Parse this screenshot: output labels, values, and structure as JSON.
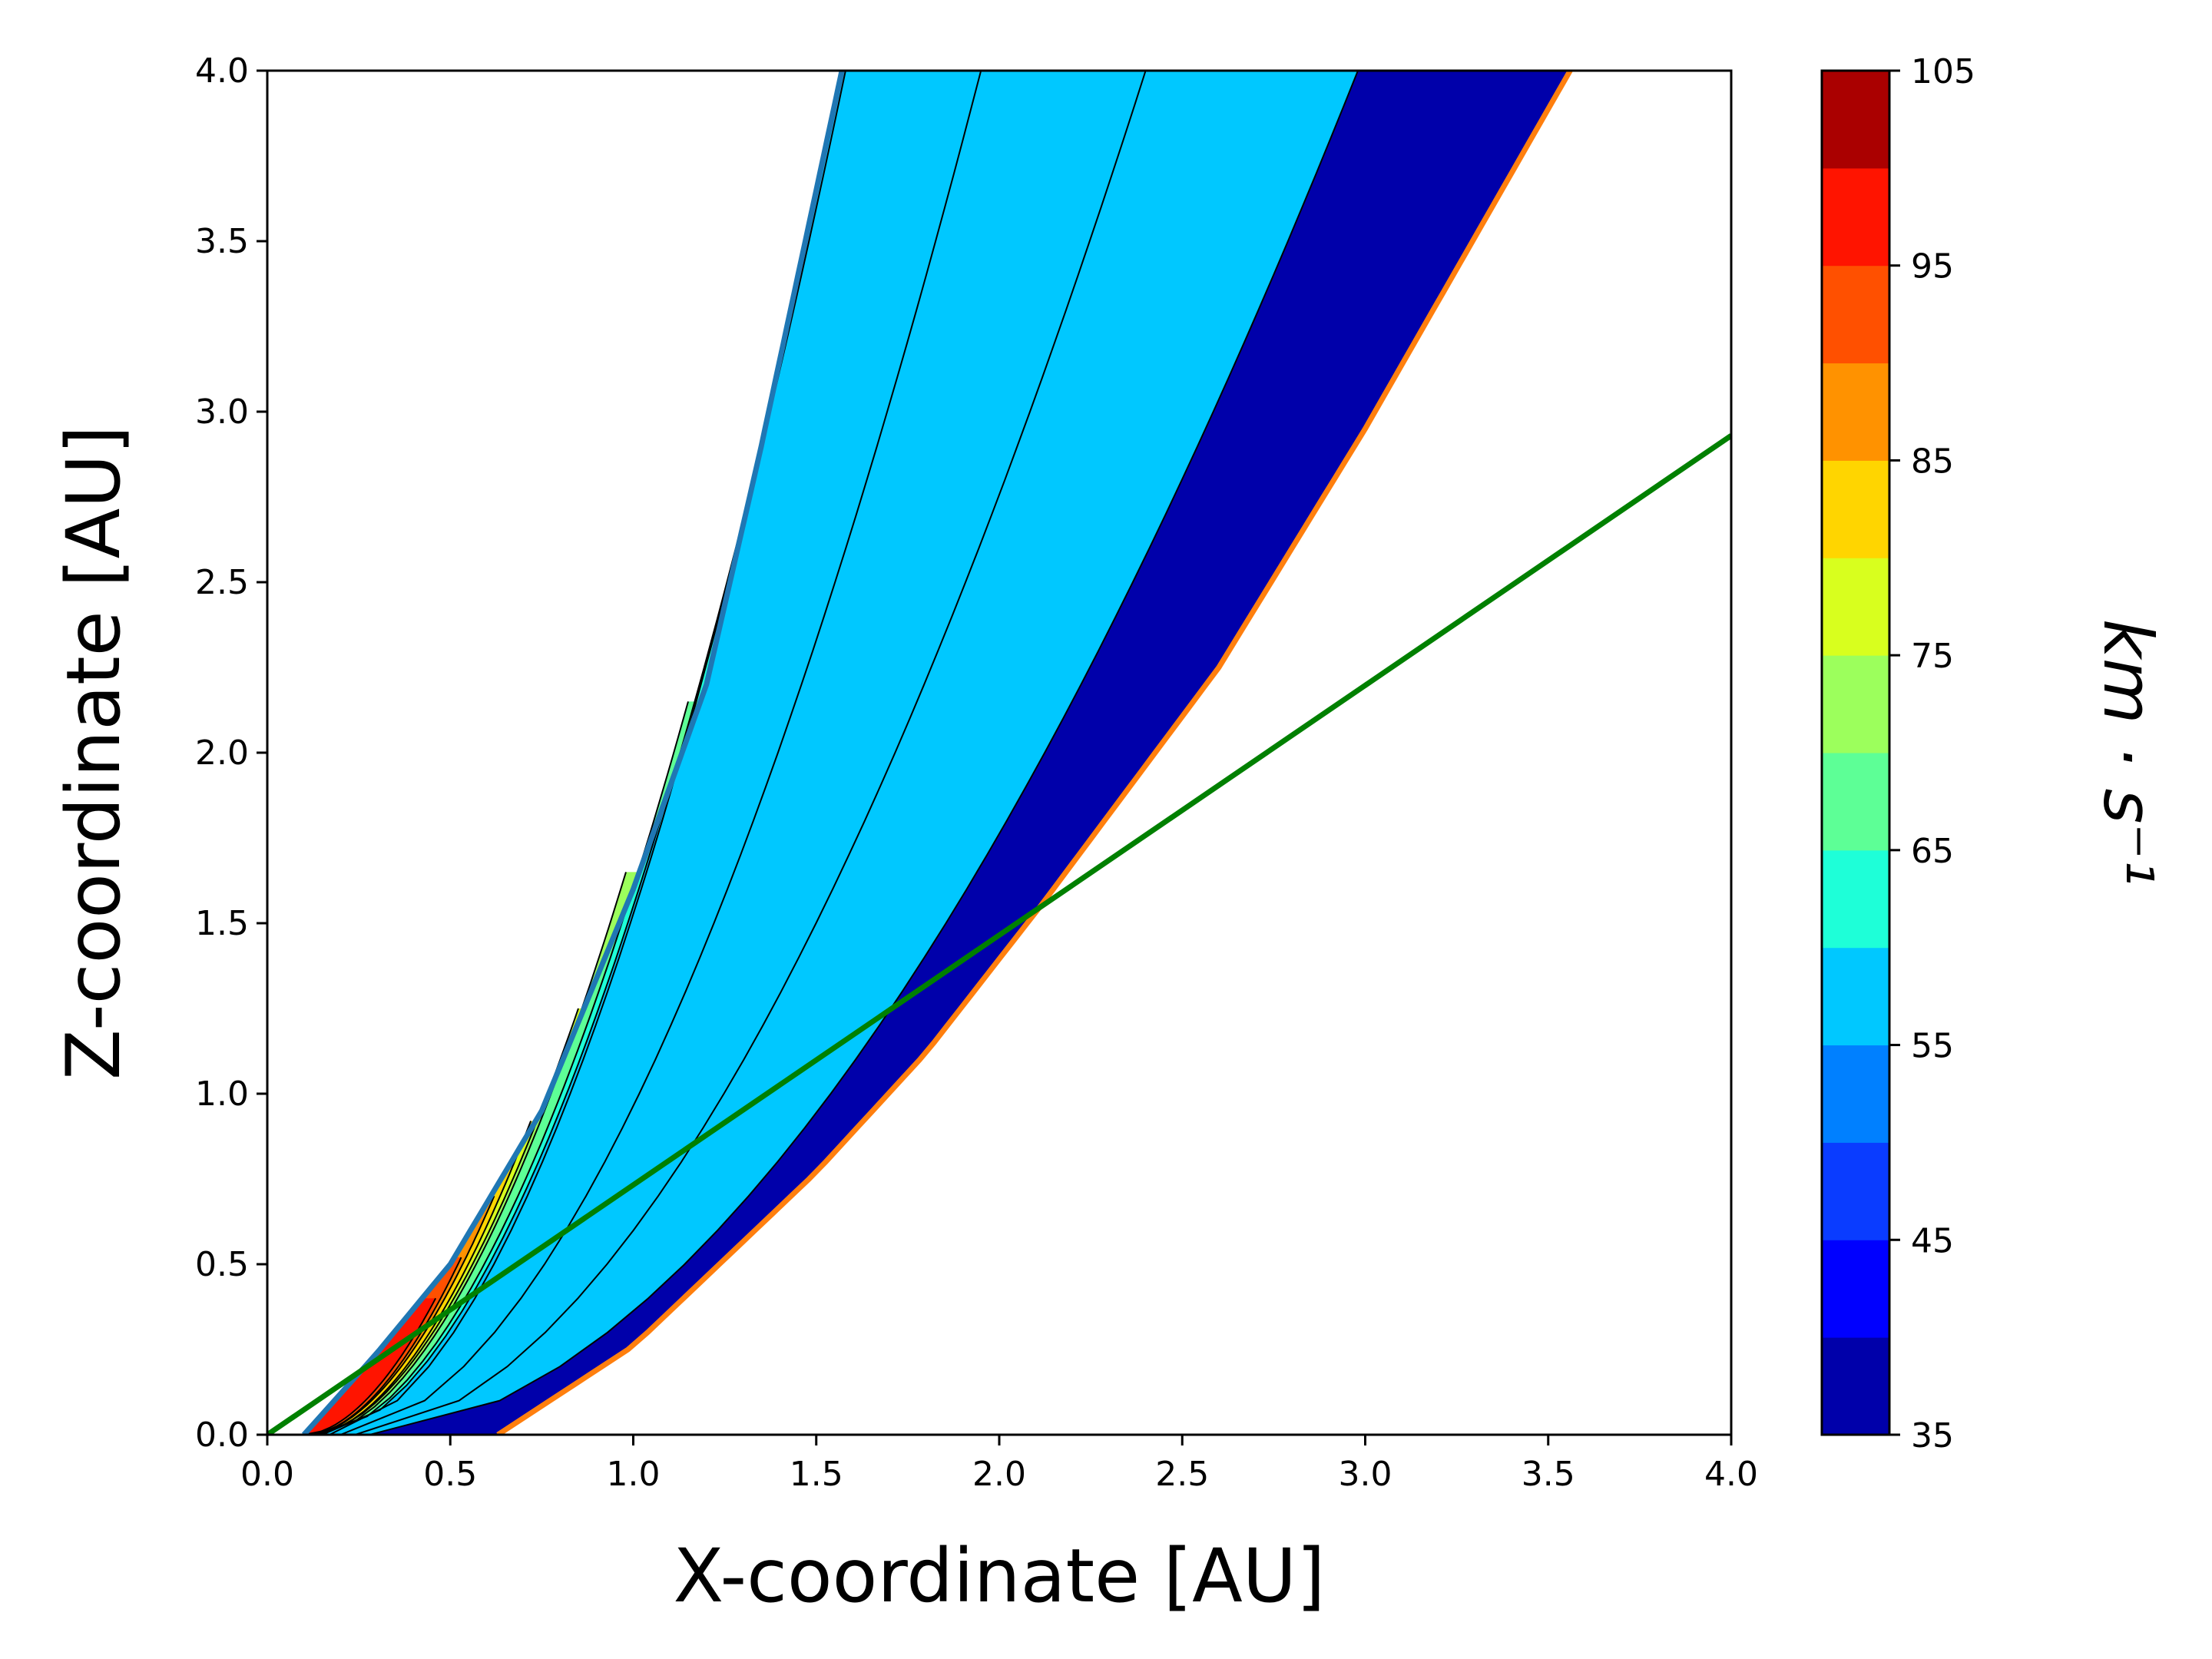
{
  "chart_data": {
    "type": "contour",
    "xlabel": "X-coordinate [AU]",
    "ylabel": "Z-coordinate [AU]",
    "xlim": [
      0.0,
      4.0
    ],
    "ylim": [
      0.0,
      4.0
    ],
    "x_ticks": [
      "0.0",
      "0.5",
      "1.0",
      "1.5",
      "2.0",
      "2.5",
      "3.0",
      "3.5",
      "4.0"
    ],
    "y_ticks": [
      "0.0",
      "0.5",
      "1.0",
      "1.5",
      "2.0",
      "2.5",
      "3.0",
      "3.5",
      "4.0"
    ],
    "grid": false,
    "colorbar": {
      "label": "km · s⁻¹",
      "tick_labels": [
        "35",
        "45",
        "55",
        "65",
        "75",
        "85",
        "95",
        "105"
      ],
      "levels": [
        35,
        40,
        45,
        50,
        55,
        60,
        65,
        70,
        75,
        80,
        85,
        90,
        95,
        100,
        105
      ],
      "colors": [
        "#0000aa",
        "#0000ff",
        "#0a3cff",
        "#0080ff",
        "#00c8ff",
        "#1effd8",
        "#5dff96",
        "#9cff5c",
        "#d8ff1e",
        "#ffd500",
        "#ff9200",
        "#ff5000",
        "#ff1400",
        "#aa0000"
      ]
    },
    "boundaries": [
      {
        "description": "inner boundary curve",
        "color": "#1f77b4",
        "points": [
          [
            0.1,
            0.0
          ],
          [
            0.3,
            0.24
          ],
          [
            0.5,
            0.5
          ],
          [
            0.75,
            0.95
          ],
          [
            1.0,
            1.6
          ],
          [
            1.2,
            2.2
          ],
          [
            1.35,
            2.9
          ],
          [
            1.57,
            4.0
          ]
        ]
      },
      {
        "description": "outer boundary curve",
        "color": "#ff7f0e",
        "points": [
          [
            0.63,
            0.0
          ],
          [
            1.0,
            0.26
          ],
          [
            1.5,
            0.77
          ],
          [
            1.8,
            1.12
          ],
          [
            2.12,
            1.56
          ],
          [
            2.6,
            2.25
          ],
          [
            3.0,
            2.95
          ],
          [
            3.56,
            4.0
          ]
        ]
      }
    ],
    "line": {
      "color": "#008000",
      "x": [
        0.0,
        4.0
      ],
      "y": [
        0.0,
        2.93
      ]
    },
    "contour_lines": [
      {
        "top_x": 1.58,
        "top_z": 4.0,
        "bottom_x": 0.17
      },
      {
        "top_x": 1.95,
        "top_z": 4.0,
        "bottom_x": 0.2
      },
      {
        "top_x": 2.4,
        "top_z": 4.0,
        "bottom_x": 0.24
      },
      {
        "top_x": 2.98,
        "top_z": 4.0,
        "bottom_x": 0.28
      },
      {
        "top_x": 1.35,
        "top_z": 2.9,
        "bottom_x": 0.15
      },
      {
        "top_x": 1.15,
        "top_z": 2.15,
        "bottom_x": 0.14
      },
      {
        "top_x": 0.98,
        "top_z": 1.65,
        "bottom_x": 0.13
      },
      {
        "top_x": 0.85,
        "top_z": 1.25,
        "bottom_x": 0.12
      },
      {
        "top_x": 0.72,
        "top_z": 0.92,
        "bottom_x": 0.12
      },
      {
        "top_x": 0.62,
        "top_z": 0.7,
        "bottom_x": 0.11
      },
      {
        "top_x": 0.53,
        "top_z": 0.52,
        "bottom_x": 0.11
      },
      {
        "top_x": 0.46,
        "top_z": 0.4,
        "bottom_x": 0.1
      }
    ]
  }
}
